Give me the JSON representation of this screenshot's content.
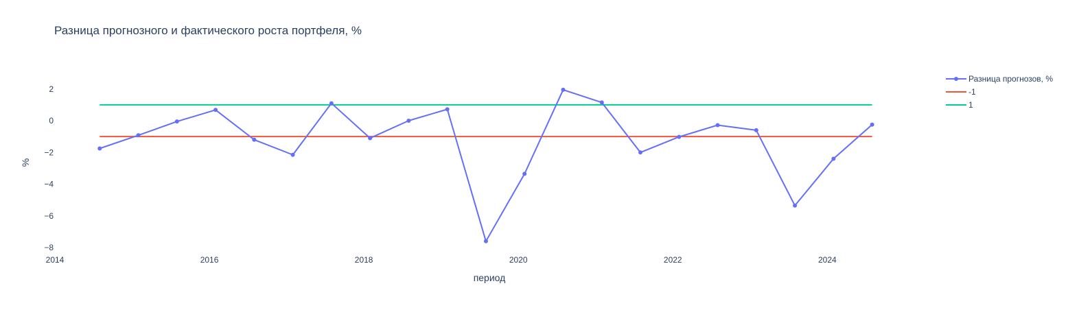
{
  "chart_data": {
    "type": "line",
    "title": "Разница прогнозного и фактического роста портфеля, %",
    "xlabel": "период",
    "ylabel": "%",
    "xlim": [
      2014.0,
      2025.25
    ],
    "ylim": [
      -8.3,
      3.2
    ],
    "x_ticks": [
      2014,
      2016,
      2018,
      2020,
      2022,
      2024
    ],
    "x_tick_labels": [
      "2014",
      "2016",
      "2018",
      "2020",
      "2022",
      "2024"
    ],
    "y_ticks": [
      2,
      0,
      -2,
      -4,
      -6,
      -8
    ],
    "y_tick_labels": [
      "2",
      "0",
      "−2",
      "−4",
      "−6",
      "−8"
    ],
    "grid": false,
    "legend_position": "right",
    "series": [
      {
        "name": "Разница прогнозов, %",
        "color": "#636efa",
        "mode": "lines+markers",
        "x": [
          2014.58,
          2015.08,
          2015.58,
          2016.08,
          2016.58,
          2017.08,
          2017.58,
          2018.08,
          2018.58,
          2019.08,
          2019.58,
          2020.08,
          2020.58,
          2021.08,
          2021.58,
          2022.08,
          2022.58,
          2023.08,
          2023.58,
          2024.08,
          2024.58
        ],
        "y": [
          -1.75,
          -0.92,
          -0.05,
          0.68,
          -1.2,
          -2.15,
          1.1,
          -1.1,
          0.0,
          0.72,
          -7.6,
          -3.35,
          1.95,
          1.15,
          -2.0,
          -1.02,
          -0.28,
          -0.6,
          -5.35,
          -2.4,
          -0.25
        ]
      },
      {
        "name": "-1",
        "color": "#ef553b",
        "mode": "lines",
        "x": [
          2014.58,
          2024.58
        ],
        "y": [
          -1,
          -1
        ]
      },
      {
        "name": "1",
        "color": "#00cc96",
        "mode": "lines",
        "x": [
          2014.58,
          2024.58
        ],
        "y": [
          1,
          1
        ]
      }
    ]
  }
}
